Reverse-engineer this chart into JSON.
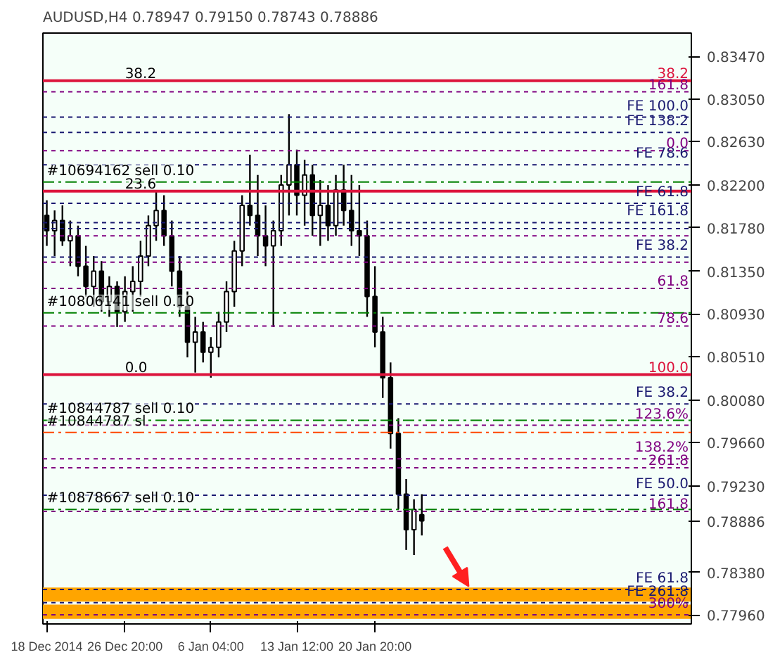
{
  "chart_data": {
    "type": "candlestick",
    "title": "AUDUSD,H4  0.78947 0.79150 0.78743 0.78886",
    "categories": [
      "18 Dec 2014",
      null,
      null,
      null,
      null,
      null,
      null,
      null,
      null,
      null,
      "26 Dec 20:00",
      null,
      null,
      null,
      null,
      null,
      null,
      null,
      null,
      null,
      null,
      "6 Jan 04:00",
      null,
      null,
      null,
      null,
      null,
      null,
      null,
      null,
      null,
      null,
      "13 Jan 12:00",
      null,
      null,
      null,
      null,
      null,
      null,
      null,
      null,
      null,
      "20 Jan 20:00",
      null,
      null,
      null,
      null,
      null,
      null,
      null,
      null,
      null,
      null,
      null,
      null,
      null,
      null,
      null,
      null,
      null,
      null,
      null,
      null,
      null,
      null,
      null,
      null,
      null,
      null,
      null,
      null,
      null,
      null,
      null,
      null,
      null,
      null,
      null,
      null,
      null,
      null,
      null,
      null
    ],
    "ohlc": [
      [
        0.819,
        0.8205,
        0.816,
        0.8175
      ],
      [
        0.8175,
        0.8195,
        0.815,
        0.8185
      ],
      [
        0.8185,
        0.82,
        0.816,
        0.8165
      ],
      [
        0.8165,
        0.8185,
        0.814,
        0.817
      ],
      [
        0.817,
        0.818,
        0.813,
        0.814
      ],
      [
        0.814,
        0.816,
        0.811,
        0.812
      ],
      [
        0.812,
        0.815,
        0.81,
        0.8135
      ],
      [
        0.8135,
        0.8145,
        0.8095,
        0.8105
      ],
      [
        0.8105,
        0.813,
        0.809,
        0.812
      ],
      [
        0.812,
        0.8125,
        0.808,
        0.8095
      ],
      [
        0.8095,
        0.813,
        0.8085,
        0.8115
      ],
      [
        0.8115,
        0.814,
        0.8095,
        0.8125
      ],
      [
        0.8125,
        0.8165,
        0.811,
        0.815
      ],
      [
        0.815,
        0.819,
        0.814,
        0.818
      ],
      [
        0.818,
        0.8215,
        0.8165,
        0.8195
      ],
      [
        0.8195,
        0.821,
        0.816,
        0.817
      ],
      [
        0.817,
        0.8185,
        0.812,
        0.8135
      ],
      [
        0.8135,
        0.815,
        0.809,
        0.81
      ],
      [
        0.81,
        0.8115,
        0.805,
        0.8065
      ],
      [
        0.8065,
        0.809,
        0.8035,
        0.8075
      ],
      [
        0.8075,
        0.8085,
        0.8045,
        0.8055
      ],
      [
        0.8055,
        0.807,
        0.803,
        0.806
      ],
      [
        0.806,
        0.8095,
        0.805,
        0.8085
      ],
      [
        0.8085,
        0.8125,
        0.8075,
        0.8115
      ],
      [
        0.8115,
        0.8165,
        0.81,
        0.8155
      ],
      [
        0.8155,
        0.821,
        0.814,
        0.82
      ],
      [
        0.82,
        0.825,
        0.818,
        0.819
      ],
      [
        0.819,
        0.823,
        0.815,
        0.817
      ],
      [
        0.817,
        0.82,
        0.814,
        0.816
      ],
      [
        0.816,
        0.8185,
        0.808,
        0.8175
      ],
      [
        0.8175,
        0.823,
        0.816,
        0.822
      ],
      [
        0.822,
        0.829,
        0.819,
        0.824
      ],
      [
        0.824,
        0.8255,
        0.819,
        0.821
      ],
      [
        0.821,
        0.8245,
        0.818,
        0.823
      ],
      [
        0.823,
        0.824,
        0.817,
        0.819
      ],
      [
        0.819,
        0.8225,
        0.816,
        0.82
      ],
      [
        0.82,
        0.822,
        0.8165,
        0.818
      ],
      [
        0.818,
        0.823,
        0.817,
        0.8215
      ],
      [
        0.8215,
        0.824,
        0.818,
        0.8195
      ],
      [
        0.8195,
        0.823,
        0.816,
        0.8175
      ],
      [
        0.8175,
        0.822,
        0.815,
        0.817
      ],
      [
        0.817,
        0.8185,
        0.809,
        0.811
      ],
      [
        0.811,
        0.814,
        0.806,
        0.8075
      ],
      [
        0.8075,
        0.809,
        0.801,
        0.803
      ],
      [
        0.803,
        0.8045,
        0.796,
        0.7975
      ],
      [
        0.7975,
        0.799,
        0.79,
        0.7915
      ],
      [
        0.7915,
        0.793,
        0.786,
        0.788
      ],
      [
        0.788,
        0.791,
        0.7855,
        0.79
      ],
      [
        0.78947,
        0.7915,
        0.78743,
        0.78886
      ],
      null,
      null,
      null,
      null,
      null,
      null,
      null,
      null,
      null,
      null,
      null,
      null,
      null,
      null,
      null,
      null,
      null,
      null,
      null,
      null,
      null,
      null,
      null,
      null,
      null,
      null,
      null,
      null,
      null,
      null,
      null,
      null,
      null,
      null
    ],
    "color": "#000000",
    "ylim": [
      0.7787,
      0.837
    ],
    "yticks": [
      {
        "value": 0.8347,
        "label": "0.83470"
      },
      {
        "value": 0.8305,
        "label": "0.83050"
      },
      {
        "value": 0.8263,
        "label": "0.82630"
      },
      {
        "value": 0.822,
        "label": "0.82200"
      },
      {
        "value": 0.8178,
        "label": "0.81780"
      },
      {
        "value": 0.8135,
        "label": "0.81350"
      },
      {
        "value": 0.8093,
        "label": "0.80930"
      },
      {
        "value": 0.8051,
        "label": "0.80510"
      },
      {
        "value": 0.8008,
        "label": "0.80080"
      },
      {
        "value": 0.7966,
        "label": "0.79660"
      },
      {
        "value": 0.7923,
        "label": "0.79230"
      },
      {
        "value": 0.78886,
        "label": "0.78886"
      },
      {
        "value": 0.7838,
        "label": "0.78380"
      },
      {
        "value": 0.7796,
        "label": "0.77960"
      }
    ],
    "ref_lines": [
      {
        "axis": "y",
        "value": 0.8323,
        "label": null,
        "color": "#dc143c",
        "line_style": "solid"
      },
      {
        "axis": "y",
        "value": 0.8312,
        "label": null,
        "color": "#800080",
        "line_style": "dashed"
      },
      {
        "axis": "y",
        "value": 0.8287,
        "label": "FE 100.0",
        "color": "#191970",
        "line_style": "dashed"
      },
      {
        "axis": "y",
        "value": 0.8272,
        "label": "FE 138.2",
        "color": "#191970",
        "line_style": "dashed"
      },
      {
        "axis": "y",
        "value": 0.8254,
        "label": null,
        "color": "#800080",
        "line_style": "dashed"
      },
      {
        "axis": "y",
        "value": 0.824,
        "label": "FE 78.6",
        "color": "#191970",
        "line_style": "dashed"
      },
      {
        "axis": "y",
        "value": 0.8223,
        "label": null,
        "color": "#008000",
        "line_style": "dashdot"
      },
      {
        "axis": "y",
        "value": 0.8214,
        "label": null,
        "color": "#dc143c",
        "line_style": "solid"
      },
      {
        "axis": "y",
        "value": 0.8202,
        "label": "FE 61.8",
        "color": "#191970",
        "line_style": "dashed"
      },
      {
        "axis": "y",
        "value": 0.8183,
        "label": "FE 161.8",
        "color": "#191970",
        "line_style": "dashed"
      },
      {
        "axis": "y",
        "value": 0.8177,
        "label": null,
        "color": "#191970",
        "line_style": "dashed"
      },
      {
        "axis": "y",
        "value": 0.817,
        "label": null,
        "color": "#800080",
        "line_style": "dashed"
      },
      {
        "axis": "y",
        "value": 0.8149,
        "label": "FE 38.2",
        "color": "#191970",
        "line_style": "dashed"
      },
      {
        "axis": "y",
        "value": 0.8144,
        "label": null,
        "color": "#800080",
        "line_style": "dashed"
      },
      {
        "axis": "y",
        "value": 0.8118,
        "label": null,
        "color": "#800080",
        "line_style": "dashed"
      },
      {
        "axis": "y",
        "value": 0.8094,
        "label": null,
        "color": "#008000",
        "line_style": "dashdot"
      },
      {
        "axis": "y",
        "value": 0.8081,
        "label": null,
        "color": "#800080",
        "line_style": "dashed"
      },
      {
        "axis": "y",
        "value": 0.8033,
        "label": null,
        "color": "#dc143c",
        "line_style": "solid"
      },
      {
        "axis": "y",
        "value": 0.8004,
        "label": "FE 38.2",
        "color": "#191970",
        "line_style": "dashed"
      },
      {
        "axis": "y",
        "value": 0.7988,
        "label": null,
        "color": "#008000",
        "line_style": "dashdot"
      },
      {
        "axis": "y",
        "value": 0.7983,
        "label": null,
        "color": "#800080",
        "line_style": "dashed"
      },
      {
        "axis": "y",
        "value": 0.7976,
        "label": null,
        "color": "#ff4500",
        "line_style": "dashdot"
      },
      {
        "axis": "y",
        "value": 0.795,
        "label": null,
        "color": "#800080",
        "line_style": "dashed"
      },
      {
        "axis": "y",
        "value": 0.7941,
        "label": null,
        "color": "#800080",
        "line_style": "dashed"
      },
      {
        "axis": "y",
        "value": 0.7914,
        "label": "FE 50.0",
        "color": "#191970",
        "line_style": "dashed"
      },
      {
        "axis": "y",
        "value": 0.79,
        "label": null,
        "color": "#008000",
        "line_style": "dashdot"
      },
      {
        "axis": "y",
        "value": 0.7898,
        "label": null,
        "color": "#800080",
        "line_style": "dashed"
      },
      {
        "axis": "y",
        "value": 0.7821,
        "label": "FE 61.8",
        "color": "#191970",
        "line_style": "dashed"
      },
      {
        "axis": "y",
        "value": 0.7808,
        "label": "FE 261.8",
        "color": "#191970",
        "line_style": "dashed"
      },
      {
        "axis": "y",
        "value": 0.7796,
        "label": null,
        "color": "#800080",
        "line_style": "dashed"
      }
    ],
    "bands": [
      {
        "axis": "y",
        "from": 0.7809,
        "to": 0.7823,
        "color": "#ffa500"
      },
      {
        "axis": "y",
        "from": 0.7792,
        "to": 0.7806,
        "color": "#ffa500"
      }
    ],
    "annotations": [
      {
        "text": "#10694162 sell 0.10",
        "x": "18 Dec 2014",
        "y": 0.8223
      },
      {
        "text": "#10806141 sell 0.10",
        "x": "18 Dec 2014",
        "y": 0.8094
      },
      {
        "text": "#10844787 sell 0.10",
        "x": "18 Dec 2014",
        "y": 0.7988
      },
      {
        "text": "#10844787 sl",
        "x": "18 Dec 2014",
        "y": 0.7976
      },
      {
        "text": "#10878667 sell 0.10",
        "x": "18 Dec 2014",
        "y": 0.79
      },
      {
        "text": "38.2",
        "x": "26 Dec 20:00",
        "y": 0.8323
      },
      {
        "text": "23.6",
        "x": "26 Dec 20:00",
        "y": 0.8214
      },
      {
        "text": "0.0",
        "x": "26 Dec 20:00",
        "y": 0.8033
      },
      {
        "text": "38.2",
        "y": 0.8323
      },
      {
        "text": "161.8",
        "y": 0.8312
      },
      {
        "text": "0.0",
        "y": 0.8254
      },
      {
        "text": "61.8",
        "y": 0.8118
      },
      {
        "text": "78.6",
        "y": 0.8081
      },
      {
        "text": "100.0",
        "y": 0.8033
      },
      {
        "text": "123.6%",
        "y": 0.7983
      },
      {
        "text": "138.2%",
        "y": 0.795
      },
      {
        "text": "261.8",
        "y": 0.7941
      },
      {
        "text": "161.8",
        "y": 0.7898
      },
      {
        "text": "300%",
        "y": 0.7796
      }
    ],
    "grid": false
  }
}
